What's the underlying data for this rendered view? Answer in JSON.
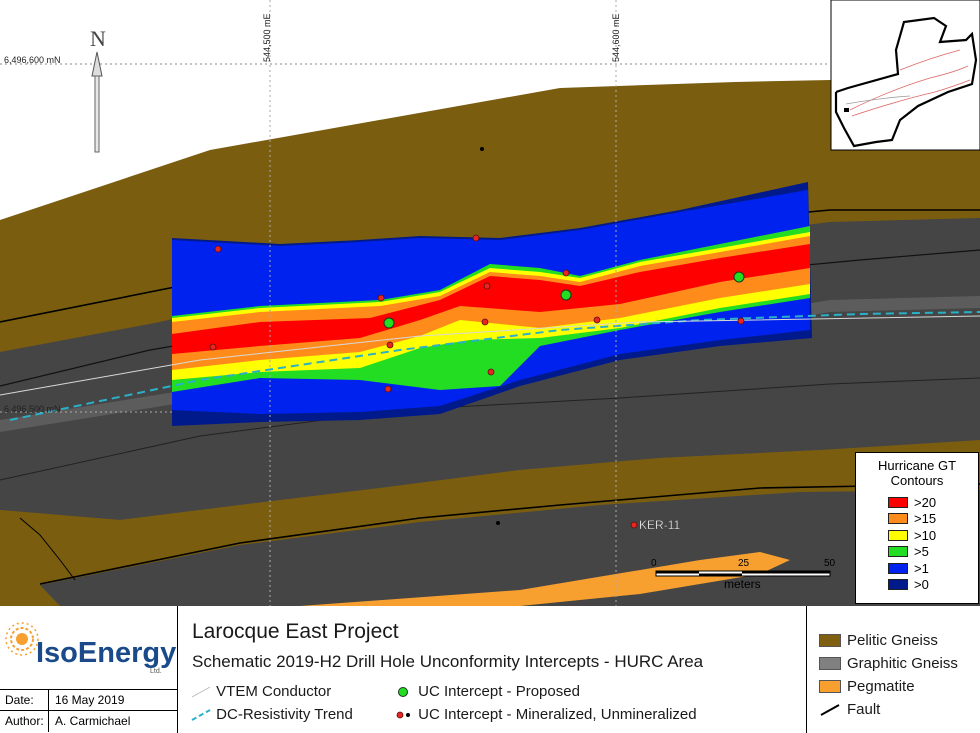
{
  "map": {
    "north_letter": "N",
    "coords": {
      "northing_top": "6,496,600 mN",
      "northing_bottom": "6,496,500 mN",
      "easting_left": "544,500 mE",
      "easting_right": "544,600 mE"
    },
    "drill_label": "KER-11",
    "scale": {
      "ticks": [
        "0",
        "25",
        "50"
      ],
      "unit": "meters"
    }
  },
  "gt_legend": {
    "title_line1": "Hurricane GT",
    "title_line2": "Contours",
    "items": [
      {
        "label": ">20",
        "color": "#ff0000"
      },
      {
        "label": ">15",
        "color": "#ff8c1a"
      },
      {
        "label": ">10",
        "color": "#ffff00"
      },
      {
        "label": ">5",
        "color": "#22dd22"
      },
      {
        "label": ">1",
        "color": "#0022ee"
      },
      {
        "label": ">0",
        "color": "#001a8c"
      }
    ]
  },
  "footer": {
    "company_name": "IsoEnergy",
    "company_suffix": "Ltd.",
    "date_label": "Date:",
    "date_value": "16 May 2019",
    "author_label": "Author:",
    "author_value": "A. Carmichael",
    "title": "Larocque East Project",
    "subtitle": "Schematic 2019-H2 Drill Hole Unconformity Intercepts - HURC Area",
    "legend": {
      "vtem": "VTEM Conductor",
      "dc_resistivity": "DC-Resistivity Trend",
      "uc_proposed": "UC Intercept - Proposed",
      "uc_mineralized": "UC Intercept - Mineralized, Unmineralized"
    },
    "geology": [
      {
        "label": "Pelitic Gneiss",
        "color": "#806010"
      },
      {
        "label": "Graphitic Gneiss",
        "color": "#808080"
      },
      {
        "label": "Pegmatite",
        "color": "#f7a030"
      },
      {
        "label": "Fault",
        "color": "#000000"
      }
    ]
  }
}
